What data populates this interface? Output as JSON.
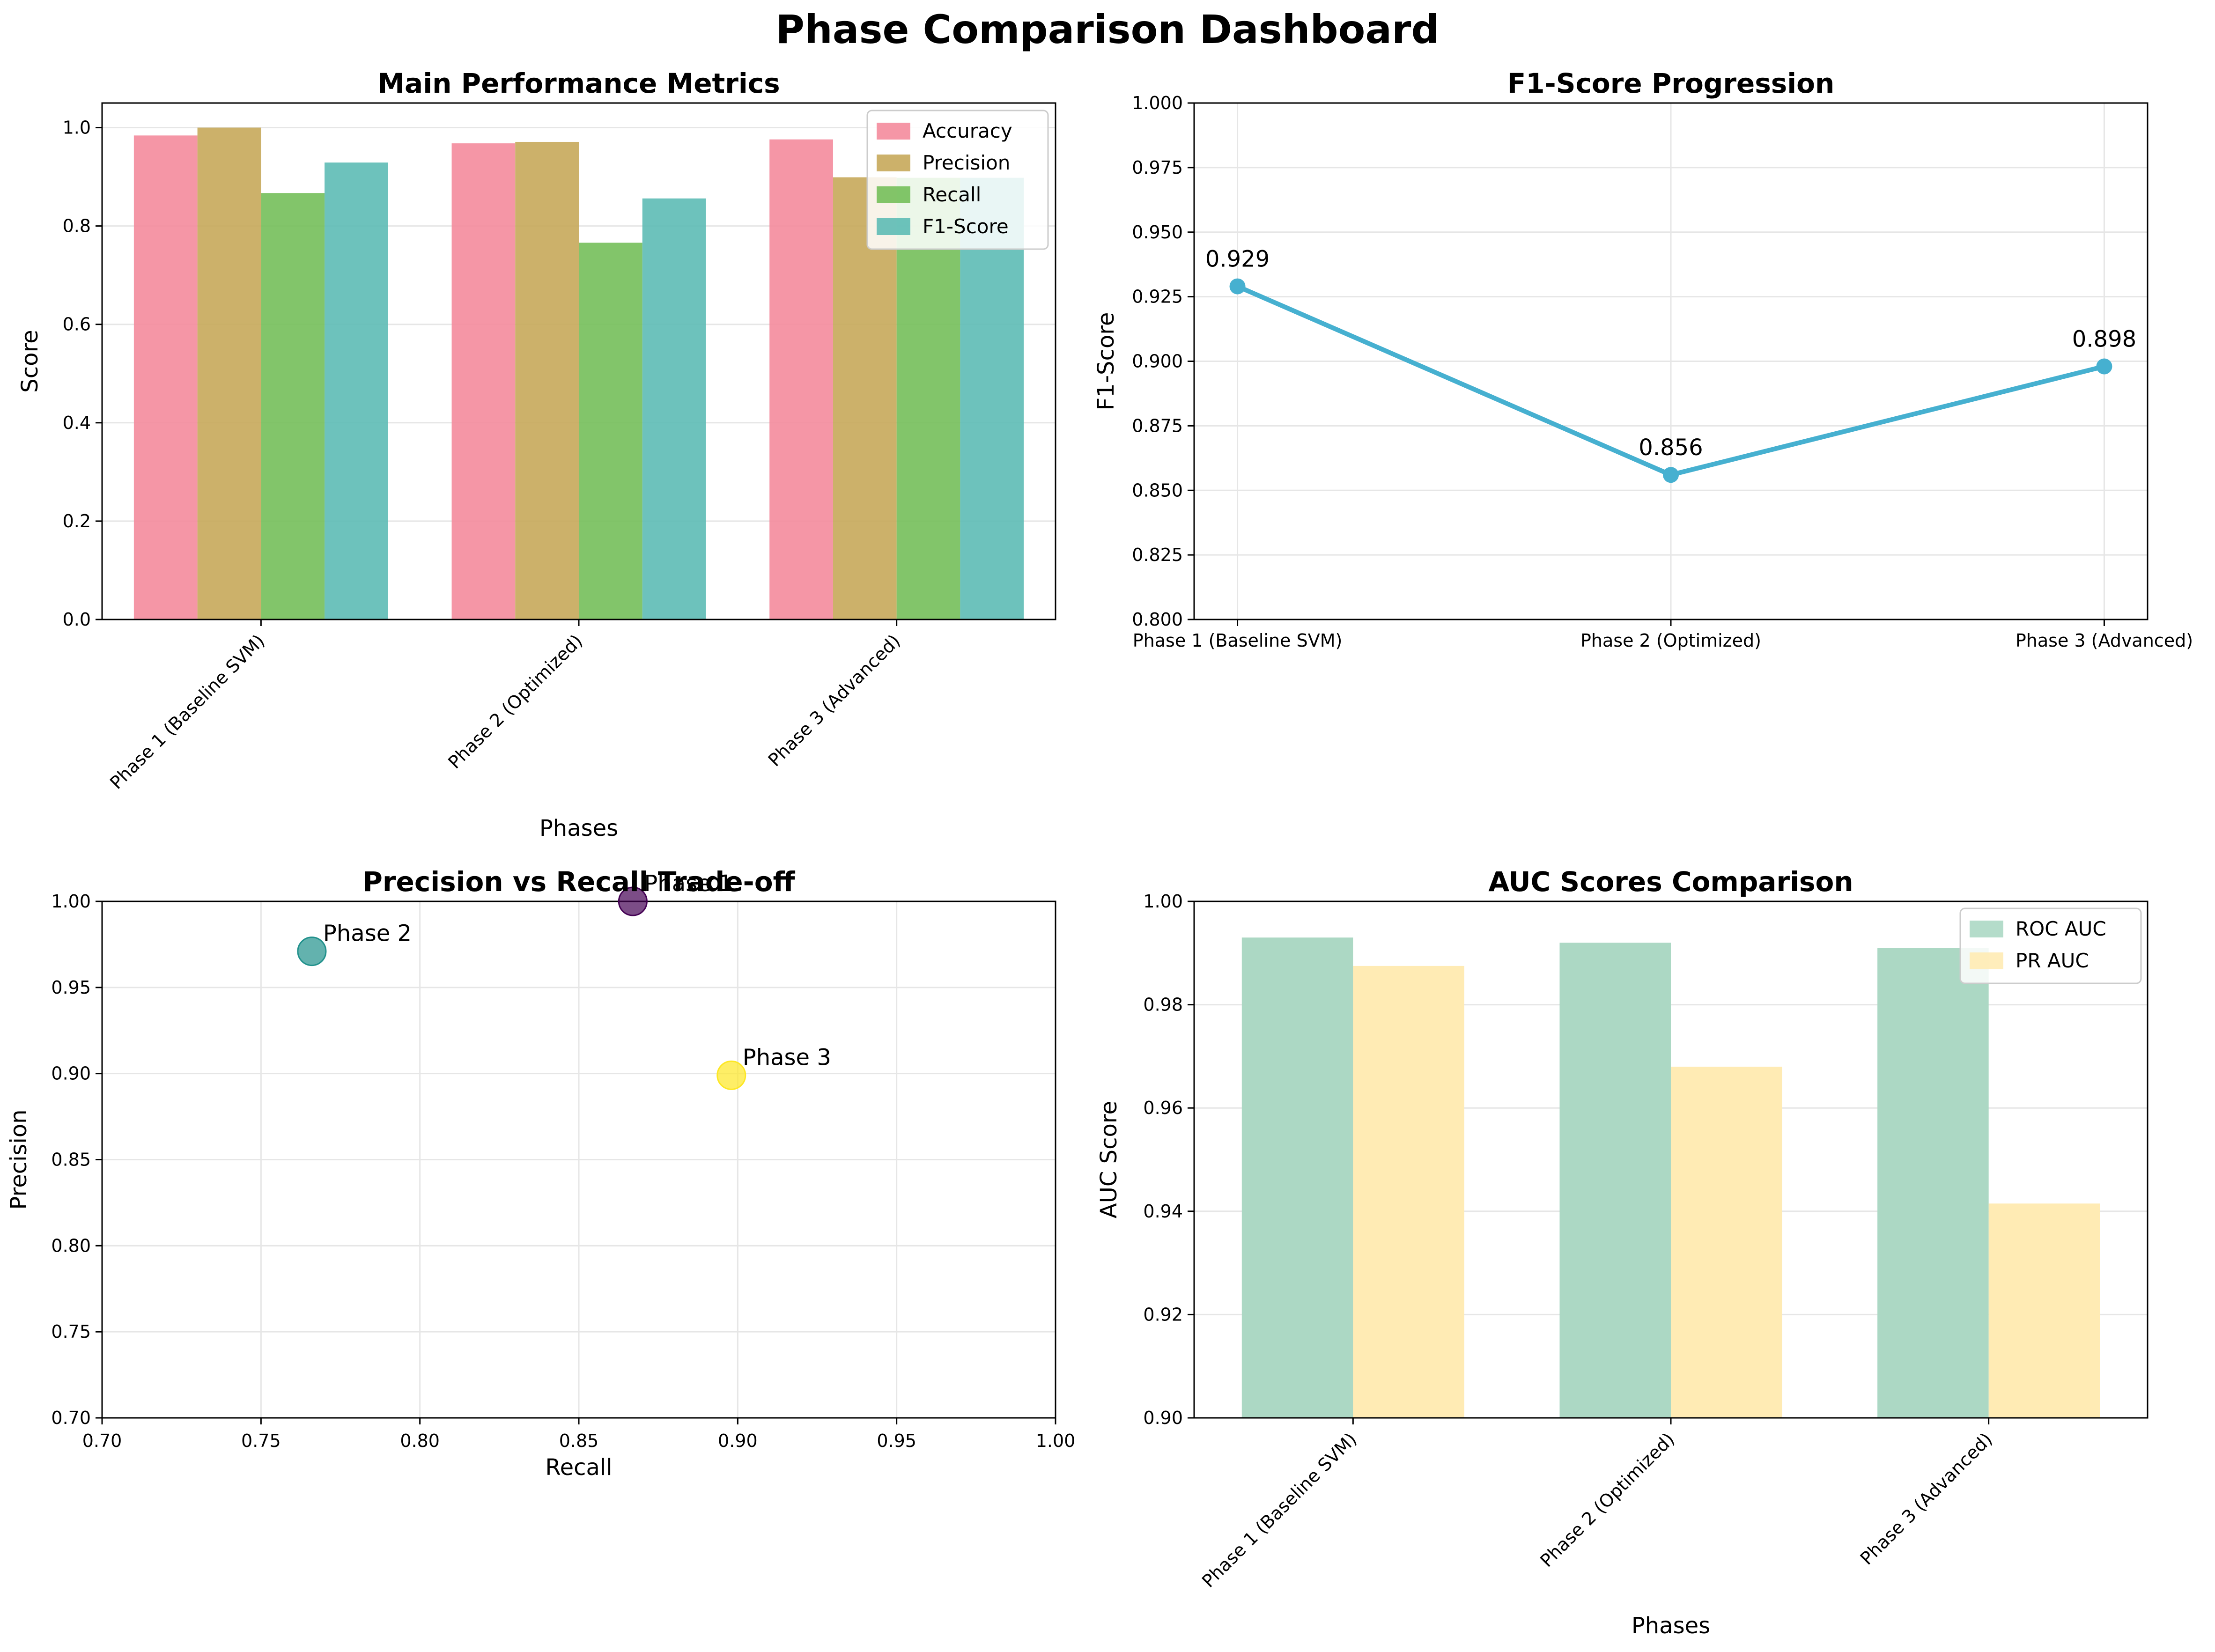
{
  "title": "Phase Comparison Dashboard",
  "chart_data": [
    {
      "type": "bar",
      "title": "Main Performance Metrics",
      "xlabel": "Phases",
      "ylabel": "Score",
      "categories": [
        "Phase 1 (Baseline SVM)",
        "Phase 2 (Optimized)",
        "Phase 3 (Advanced)"
      ],
      "series": [
        {
          "name": "Accuracy",
          "color": "#f48b9c",
          "values": [
            0.984,
            0.968,
            0.976
          ]
        },
        {
          "name": "Precision",
          "color": "#c7a85a",
          "values": [
            1.0,
            0.971,
            0.899
          ]
        },
        {
          "name": "Recall",
          "color": "#74bf5a",
          "values": [
            0.867,
            0.766,
            0.898
          ]
        },
        {
          "name": "F1-Score",
          "color": "#5dbbb5",
          "values": [
            0.929,
            0.856,
            0.898
          ]
        }
      ],
      "ylim": [
        0,
        1.05
      ],
      "yticks": [
        "0.0",
        "0.2",
        "0.4",
        "0.6",
        "0.8",
        "1.0"
      ],
      "legend": "upper right",
      "grid": true
    },
    {
      "type": "line",
      "title": "F1-Score Progression",
      "xlabel": "",
      "ylabel": "F1-Score",
      "categories": [
        "Phase 1 (Baseline SVM)",
        "Phase 2 (Optimized)",
        "Phase 3 (Advanced)"
      ],
      "values": [
        0.929,
        0.856,
        0.898
      ],
      "data_labels": [
        "0.929",
        "0.856",
        "0.898"
      ],
      "color": "#46b0d0",
      "ylim": [
        0.8,
        1.0
      ],
      "yticks": [
        "0.800",
        "0.825",
        "0.850",
        "0.875",
        "0.900",
        "0.925",
        "0.950",
        "0.975",
        "1.000"
      ],
      "grid": true
    },
    {
      "type": "scatter",
      "title": "Precision vs Recall Trade-off",
      "xlabel": "Recall",
      "ylabel": "Precision",
      "points": [
        {
          "label": "Phase 1",
          "x": 0.867,
          "y": 1.0,
          "color": "#440154"
        },
        {
          "label": "Phase 2",
          "x": 0.766,
          "y": 0.971,
          "color": "#21918c"
        },
        {
          "label": "Phase 3",
          "x": 0.898,
          "y": 0.899,
          "color": "#fde725"
        }
      ],
      "xlim": [
        0.7,
        1.0
      ],
      "ylim": [
        0.7,
        1.0
      ],
      "xticks": [
        "0.70",
        "0.75",
        "0.80",
        "0.85",
        "0.90",
        "0.95",
        "1.00"
      ],
      "yticks": [
        "0.70",
        "0.75",
        "0.80",
        "0.85",
        "0.90",
        "0.95",
        "1.00"
      ],
      "grid": true
    },
    {
      "type": "bar",
      "title": "AUC Scores Comparison",
      "xlabel": "Phases",
      "ylabel": "AUC Score",
      "categories": [
        "Phase 1 (Baseline SVM)",
        "Phase 2 (Optimized)",
        "Phase 3 (Advanced)"
      ],
      "series": [
        {
          "name": "ROC AUC",
          "color": "#acd8c4",
          "values": [
            0.993,
            0.992,
            0.991
          ]
        },
        {
          "name": "PR AUC",
          "color": "#ffebb4",
          "values": [
            0.9875,
            0.968,
            0.9415
          ]
        }
      ],
      "ylim": [
        0.9,
        1.0
      ],
      "yticks": [
        "0.90",
        "0.92",
        "0.94",
        "0.96",
        "0.98",
        "1.00"
      ],
      "legend": "upper right",
      "grid": true
    }
  ]
}
